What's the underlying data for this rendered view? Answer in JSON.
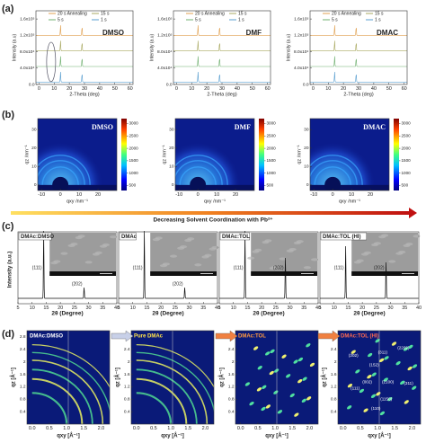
{
  "a": {
    "label": "(a)",
    "xlabel": "2-Theta (deg)",
    "ylabel": "Intensity (a.u)",
    "xlim": [
      -2,
      62
    ],
    "ylim": [
      0,
      180000
    ],
    "xticks": [
      0,
      10,
      20,
      30,
      40,
      50,
      60
    ],
    "yticks": [
      {
        "value": 0,
        "label": "0.0"
      },
      {
        "value": 40000,
        "label": "4.0x10⁴"
      },
      {
        "value": 80000,
        "label": "8.0x10⁴"
      },
      {
        "value": 120000,
        "label": "1.2x10⁵"
      },
      {
        "value": 160000,
        "label": "1.6x10⁵"
      }
    ],
    "legend": [
      {
        "name": "20 s Annealing",
        "color": "#e0a050"
      },
      {
        "name": "15 s",
        "color": "#a8a860"
      },
      {
        "name": "5 s",
        "color": "#6fb06f"
      },
      {
        "name": "1 s",
        "color": "#5a9fd0"
      }
    ],
    "peaks": [
      14.2,
      28.4
    ],
    "plots": [
      {
        "title": "DMSO"
      },
      {
        "title": "DMF"
      },
      {
        "title": "DMAC"
      }
    ]
  },
  "b": {
    "label": "(b)",
    "xlabel": "qxy /nm⁻¹",
    "ylabel": "qz /nm⁻¹",
    "xlim": [
      -12,
      30
    ],
    "ylim": [
      -3,
      36
    ],
    "xticks": [
      -10,
      0,
      10,
      20
    ],
    "yticks": [
      0,
      10,
      20,
      30
    ],
    "clim": [
      300,
      3200
    ],
    "cticks": [
      500,
      1000,
      1500,
      2000,
      2500,
      3000
    ],
    "plots": [
      {
        "title": "DMSO"
      },
      {
        "title": "DMF"
      },
      {
        "title": "DMAC"
      }
    ]
  },
  "arrow": {
    "text": "Decreasing Solvent Coordination with Pb²⁺"
  },
  "c": {
    "label": "(c)",
    "xlabel": "2θ (Degree)",
    "ylabel": "Intensity (a.u.)",
    "xlim": [
      5,
      40
    ],
    "xticks": [
      5,
      10,
      15,
      20,
      25,
      30,
      35,
      40
    ],
    "plots": [
      {
        "title": "DMAc:DMSO",
        "peaks": [
          {
            "label": "(111)",
            "x": 14.1
          },
          {
            "label": "(202)",
            "x": 28.4
          }
        ]
      },
      {
        "title": "DMAc",
        "peaks": [
          {
            "label": "(111)",
            "x": 14.1
          },
          {
            "label": "(202)",
            "x": 28.4
          }
        ]
      },
      {
        "title": "DMAc:TOL",
        "peaks": [
          {
            "label": "(111)",
            "x": 14.1
          },
          {
            "label": "(202)",
            "x": 28.4
          }
        ]
      },
      {
        "title": "DMAc:TOL (HI)",
        "peaks": [
          {
            "label": "(111)",
            "x": 14.1
          },
          {
            "label": "(202)",
            "x": 28.4
          }
        ]
      }
    ]
  },
  "d": {
    "label": "(d)",
    "xlabel": "qxy [Å⁻¹]",
    "ylabel": "qz [Å⁻¹]",
    "xlim": [
      -0.15,
      2.25
    ],
    "ylim": [
      0,
      3.0
    ],
    "xticks": [
      {
        "value": 0,
        "label": "0.0"
      },
      0.5,
      {
        "value": 1,
        "label": "1.0"
      },
      1.5,
      {
        "value": 2,
        "label": "2.0"
      }
    ],
    "yticks": [
      0.4,
      0.8,
      1.2,
      1.6,
      2.0,
      2.4,
      2.8
    ],
    "plots": [
      {
        "title": "DMAc:DMSO",
        "color": "#ffffff"
      },
      {
        "title": "Pure DMAc",
        "color": "#ffe24a"
      },
      {
        "title": "DMAc:TOL",
        "color": "#ff9a40"
      },
      {
        "title": "DMAc:TOL (HI)",
        "color": "#ff6a50",
        "annotations": [
          {
            "text": "(202)",
            "qxy": 0.3,
            "qz": 2.2
          },
          {
            "text": "(311)",
            "qxy": 1.15,
            "qz": 2.3
          },
          {
            "text": "(2202)",
            "qxy": 1.75,
            "qz": 2.45
          },
          {
            "text": "(152)",
            "qxy": 0.9,
            "qz": 1.9
          },
          {
            "text": "(002)",
            "qxy": 0.7,
            "qz": 1.35
          },
          {
            "text": "(2100)",
            "qxy": 1.3,
            "qz": 1.35
          },
          {
            "text": "(311)",
            "qxy": 1.9,
            "qz": 1.3
          },
          {
            "text": "(111)",
            "qxy": 0.35,
            "qz": 1.15
          },
          {
            "text": "(1150)",
            "qxy": 1.25,
            "qz": 0.8
          },
          {
            "text": "(110)",
            "qxy": 0.95,
            "qz": 0.5
          }
        ]
      }
    ]
  }
}
